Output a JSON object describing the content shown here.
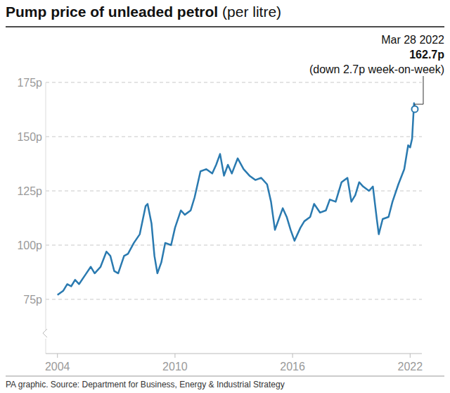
{
  "chart_data": {
    "type": "line",
    "title": "Pump price of unleaded petrol",
    "subtitle": "(per litre)",
    "source": "PA graphic. Source: Department for Business, Energy & Industrial Strategy",
    "annotation": {
      "date": "Mar 28 2022",
      "value_label": "162.7p",
      "note": "(down 2.7p week-on-week)"
    },
    "color": "#2a7ab0",
    "grid": true,
    "xlim": [
      2003.4,
      2022.6
    ],
    "xticks": [
      2004,
      2010,
      2016,
      2022
    ],
    "ylim": [
      50,
      175
    ],
    "yticks": [
      {
        "value": 75,
        "label": "75p"
      },
      {
        "value": 100,
        "label": "100p"
      },
      {
        "value": 125,
        "label": "125p"
      },
      {
        "value": 150,
        "label": "150p"
      },
      {
        "value": 175,
        "label": "175p"
      }
    ],
    "x": [
      2004.0,
      2004.3,
      2004.5,
      2004.7,
      2004.9,
      2005.1,
      2005.4,
      2005.7,
      2005.9,
      2006.2,
      2006.5,
      2006.7,
      2006.9,
      2007.1,
      2007.4,
      2007.6,
      2007.9,
      2008.2,
      2008.5,
      2008.6,
      2008.8,
      2008.95,
      2009.1,
      2009.3,
      2009.5,
      2009.8,
      2010.0,
      2010.3,
      2010.5,
      2010.8,
      2011.0,
      2011.3,
      2011.6,
      2011.9,
      2012.1,
      2012.3,
      2012.5,
      2012.7,
      2012.9,
      2013.2,
      2013.5,
      2013.8,
      2014.1,
      2014.4,
      2014.7,
      2014.9,
      2015.1,
      2015.3,
      2015.5,
      2015.7,
      2015.9,
      2016.1,
      2016.4,
      2016.6,
      2016.9,
      2017.1,
      2017.4,
      2017.7,
      2017.9,
      2018.2,
      2018.5,
      2018.8,
      2019.0,
      2019.2,
      2019.4,
      2019.6,
      2019.9,
      2020.1,
      2020.3,
      2020.4,
      2020.6,
      2020.9,
      2021.1,
      2021.4,
      2021.7,
      2021.9,
      2022.0,
      2022.1,
      2022.2,
      2022.24
    ],
    "values": [
      77,
      79,
      82,
      81,
      84,
      82,
      86,
      90,
      87,
      90,
      97,
      95,
      88,
      87,
      95,
      96,
      101,
      105,
      118,
      119,
      110,
      95,
      87,
      92,
      101,
      100,
      108,
      116,
      114,
      116,
      122,
      134,
      135,
      133,
      137,
      142,
      132,
      137,
      133,
      140,
      135,
      132,
      130,
      131,
      128,
      120,
      107,
      112,
      117,
      113,
      107,
      102,
      108,
      111,
      113,
      119,
      115,
      116,
      121,
      120,
      129,
      131,
      120,
      123,
      129,
      127,
      125,
      127,
      112,
      105,
      112,
      113,
      120,
      128,
      135,
      146,
      145,
      149,
      165.4,
      162.7
    ]
  }
}
